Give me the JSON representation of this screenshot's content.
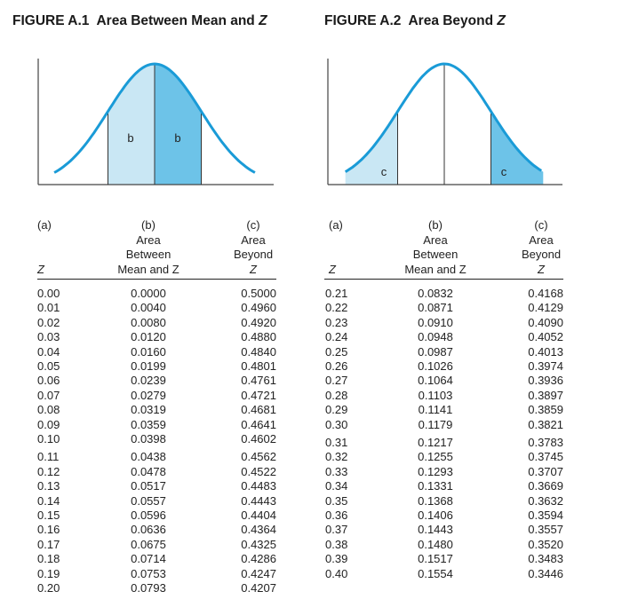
{
  "figure1": {
    "title_prefix": "FIGURE A.1",
    "title_text": "Area Between Mean and",
    "title_z": "Z",
    "label_b_left": "b",
    "label_b_right": "b"
  },
  "figure2": {
    "title_prefix": "FIGURE A.2",
    "title_text": "Area Beyond",
    "title_z": "Z",
    "label_c_left": "c",
    "label_c_right": "c"
  },
  "colors": {
    "curve": "#1a9bd7",
    "fill_light": "#c9e7f4",
    "fill_dark": "#6dc3e8",
    "axis": "#444444"
  },
  "table_headers": {
    "col_a_top": "(a)",
    "col_a_bottom": "Z",
    "col_b_top": "(b)",
    "col_b_line2": "Area",
    "col_b_line3": "Between",
    "col_b_line4": "Mean and Z",
    "col_c_top": "(c)",
    "col_c_line2": "Area",
    "col_c_line3": "Beyond",
    "col_c_line4": "Z"
  },
  "left_table": [
    [
      "0.00",
      "0.0000",
      "0.5000"
    ],
    [
      "0.01",
      "0.0040",
      "0.4960"
    ],
    [
      "0.02",
      "0.0080",
      "0.4920"
    ],
    [
      "0.03",
      "0.0120",
      "0.4880"
    ],
    [
      "0.04",
      "0.0160",
      "0.4840"
    ],
    [
      "0.05",
      "0.0199",
      "0.4801"
    ],
    [
      "0.06",
      "0.0239",
      "0.4761"
    ],
    [
      "0.07",
      "0.0279",
      "0.4721"
    ],
    [
      "0.08",
      "0.0319",
      "0.4681"
    ],
    [
      "0.09",
      "0.0359",
      "0.4641"
    ],
    [
      "0.10",
      "0.0398",
      "0.4602"
    ],
    [
      "0.11",
      "0.0438",
      "0.4562"
    ],
    [
      "0.12",
      "0.0478",
      "0.4522"
    ],
    [
      "0.13",
      "0.0517",
      "0.4483"
    ],
    [
      "0.14",
      "0.0557",
      "0.4443"
    ],
    [
      "0.15",
      "0.0596",
      "0.4404"
    ],
    [
      "0.16",
      "0.0636",
      "0.4364"
    ],
    [
      "0.17",
      "0.0675",
      "0.4325"
    ],
    [
      "0.18",
      "0.0714",
      "0.4286"
    ],
    [
      "0.19",
      "0.0753",
      "0.4247"
    ],
    [
      "0.20",
      "0.0793",
      "0.4207"
    ]
  ],
  "right_table": [
    [
      "0.21",
      "0.0832",
      "0.4168"
    ],
    [
      "0.22",
      "0.0871",
      "0.4129"
    ],
    [
      "0.23",
      "0.0910",
      "0.4090"
    ],
    [
      "0.24",
      "0.0948",
      "0.4052"
    ],
    [
      "0.25",
      "0.0987",
      "0.4013"
    ],
    [
      "0.26",
      "0.1026",
      "0.3974"
    ],
    [
      "0.27",
      "0.1064",
      "0.3936"
    ],
    [
      "0.28",
      "0.1103",
      "0.3897"
    ],
    [
      "0.29",
      "0.1141",
      "0.3859"
    ],
    [
      "0.30",
      "0.1179",
      "0.3821"
    ],
    [
      "0.31",
      "0.1217",
      "0.3783"
    ],
    [
      "0.32",
      "0.1255",
      "0.3745"
    ],
    [
      "0.33",
      "0.1293",
      "0.3707"
    ],
    [
      "0.34",
      "0.1331",
      "0.3669"
    ],
    [
      "0.35",
      "0.1368",
      "0.3632"
    ],
    [
      "0.36",
      "0.1406",
      "0.3594"
    ],
    [
      "0.37",
      "0.1443",
      "0.3557"
    ],
    [
      "0.38",
      "0.1480",
      "0.3520"
    ],
    [
      "0.39",
      "0.1517",
      "0.3483"
    ],
    [
      "0.40",
      "0.1554",
      "0.3446"
    ]
  ]
}
